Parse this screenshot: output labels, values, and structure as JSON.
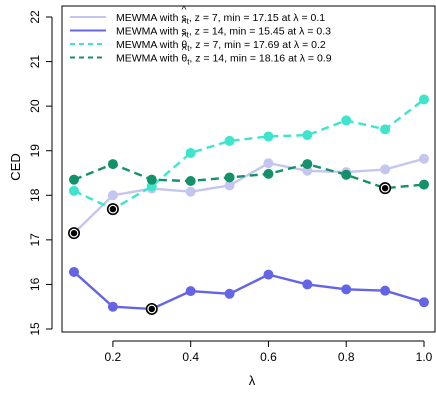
{
  "chart_data": {
    "type": "line",
    "xlabel": "λ",
    "ylabel": "CED",
    "xlim": [
      0.1,
      1.0
    ],
    "ylim": [
      15,
      22
    ],
    "x_ticks": [
      "0.2",
      "0.4",
      "0.6",
      "0.8",
      "1.0"
    ],
    "y_ticks": [
      "15",
      "16",
      "17",
      "18",
      "19",
      "20",
      "21",
      "22"
    ],
    "legend_position": "top-left",
    "x": [
      0.1,
      0.2,
      0.3,
      0.4,
      0.5,
      0.6,
      0.7,
      0.8,
      0.9,
      1.0
    ],
    "series": [
      {
        "name": "MEWMA with ŝt, z = 7, min = 17.15 at λ = 0.1",
        "name_prefix": "MEWMA with ",
        "symbol_base": "s",
        "symbol_accent": "^",
        "symbol_sub": "t",
        "name_suffix": ", z = 7, min = 17.15 at λ = 0.1",
        "color": "#c5c6ef",
        "dash": "solid",
        "values": [
          17.15,
          18.0,
          18.15,
          18.08,
          18.22,
          18.72,
          18.55,
          18.52,
          18.58,
          18.82
        ],
        "min_index": 0
      },
      {
        "name": "MEWMA with ŝt, z = 14, min = 15.45 at λ = 0.3",
        "name_prefix": "MEWMA with ",
        "symbol_base": "s",
        "symbol_accent": "^",
        "symbol_sub": "t",
        "name_suffix": ", z = 14, min = 15.45 at λ = 0.3",
        "color": "#6464e6",
        "dash": "solid",
        "values": [
          16.28,
          15.5,
          15.45,
          15.85,
          15.79,
          16.22,
          16.0,
          15.89,
          15.86,
          15.6
        ],
        "min_index": 2
      },
      {
        "name": "MEWMA with θ̂t, z = 7, min = 17.69 at λ = 0.2",
        "name_prefix": "MEWMA with ",
        "symbol_base": "θ",
        "symbol_accent": "^",
        "symbol_sub": "t",
        "name_suffix": ", z = 7, min = 17.69 at λ = 0.2",
        "color": "#3ee5cc",
        "dash": "dashed",
        "values": [
          18.1,
          17.69,
          18.2,
          18.95,
          19.22,
          19.32,
          19.35,
          19.68,
          19.48,
          20.15
        ],
        "min_index": 1
      },
      {
        "name": "MEWMA with θ̂t, z = 14, min = 18.16 at λ = 0.9",
        "name_prefix": "MEWMA with ",
        "symbol_base": "θ",
        "symbol_accent": "^",
        "symbol_sub": "t",
        "name_suffix": ", z = 14, min = 18.16 at λ = 0.9",
        "color": "#14916a",
        "dash": "dashed",
        "values": [
          18.35,
          18.7,
          18.35,
          18.32,
          18.4,
          18.48,
          18.7,
          18.46,
          18.16,
          18.24
        ],
        "min_index": 8
      }
    ]
  }
}
